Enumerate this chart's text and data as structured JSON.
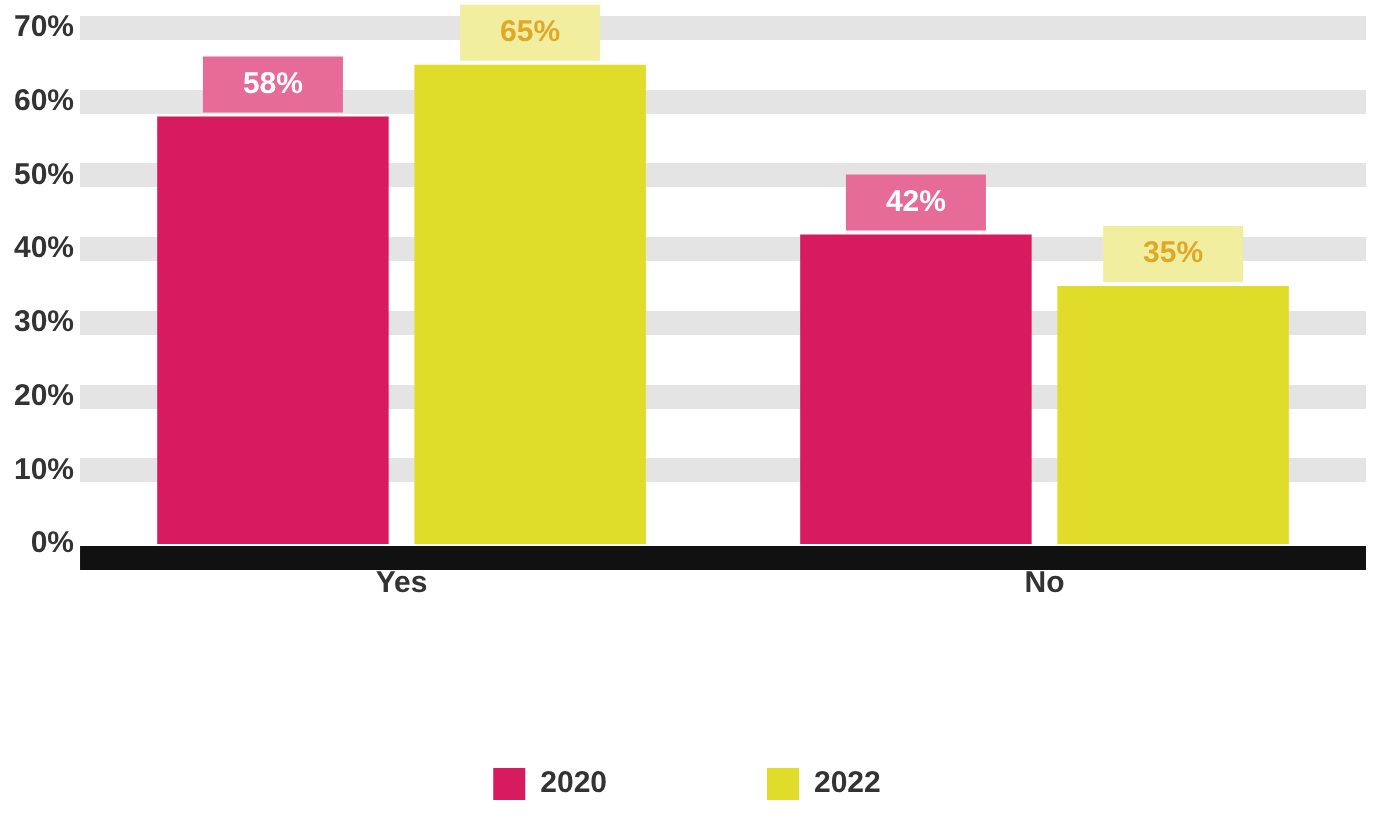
{
  "chart_data": {
    "type": "bar",
    "categories": [
      "Yes",
      "No"
    ],
    "series": [
      {
        "name": "2020",
        "color": "#d81b5e",
        "values": [
          58,
          42
        ],
        "value_labels": [
          "58%",
          "42%"
        ]
      },
      {
        "name": "2022",
        "color": "#e0dc2a",
        "values": [
          65,
          35
        ],
        "value_labels": [
          "65%",
          "35%"
        ]
      }
    ],
    "ylim": [
      0,
      70
    ],
    "yticks": [
      {
        "value": 0,
        "label": "0%"
      },
      {
        "value": 10,
        "label": "10%"
      },
      {
        "value": 20,
        "label": "20%"
      },
      {
        "value": 30,
        "label": "30%"
      },
      {
        "value": 40,
        "label": "40%"
      },
      {
        "value": 50,
        "label": "50%"
      },
      {
        "value": 60,
        "label": "60%"
      },
      {
        "value": 70,
        "label": "70%"
      }
    ],
    "grid": "y",
    "legend": "bottom"
  }
}
